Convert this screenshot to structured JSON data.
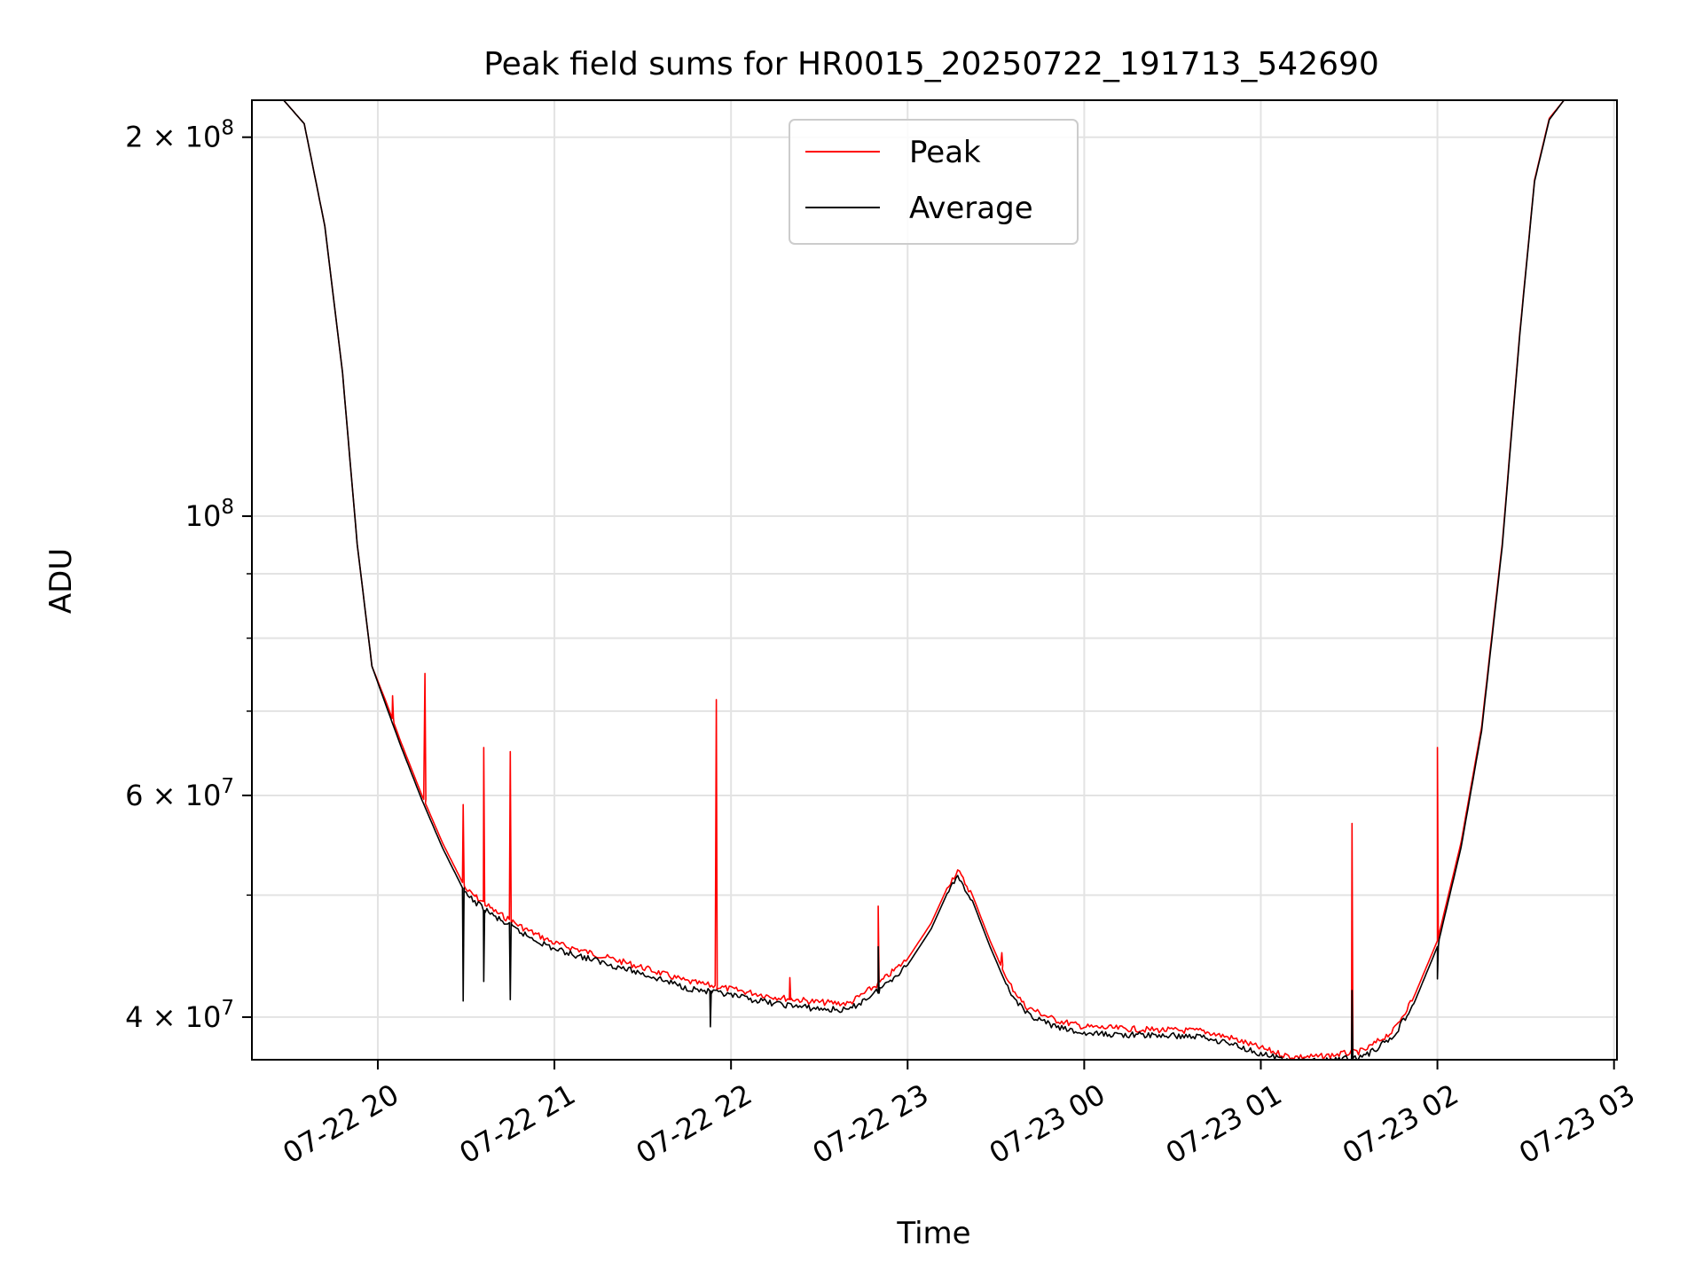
{
  "chart_data": {
    "type": "line",
    "title": "Peak field sums for HR0015_20250722_191713_542690",
    "xlabel": "Time",
    "ylabel": "ADU",
    "y_scale": "log",
    "grid": true,
    "legend_position": "upper center",
    "x_range": [
      "2025-07-22 19:17:13",
      "2025-07-23 03:01:00"
    ],
    "ylim": [
      37000000,
      214000000
    ],
    "x_ticks": [
      {
        "value": "2025-07-22 20:00",
        "label": "07-22 20"
      },
      {
        "value": "2025-07-22 21:00",
        "label": "07-22 21"
      },
      {
        "value": "2025-07-22 22:00",
        "label": "07-22 22"
      },
      {
        "value": "2025-07-22 23:00",
        "label": "07-22 23"
      },
      {
        "value": "2025-07-23 00:00",
        "label": "07-23 00"
      },
      {
        "value": "2025-07-23 01:00",
        "label": "07-23 01"
      },
      {
        "value": "2025-07-23 02:00",
        "label": "07-23 02"
      },
      {
        "value": "2025-07-23 03:00",
        "label": "07-23 03"
      }
    ],
    "y_ticks_major": [
      {
        "value": 40000000,
        "mantissa": "4",
        "exponent": "7"
      },
      {
        "value": 60000000,
        "mantissa": "6",
        "exponent": "7"
      },
      {
        "value": 100000000,
        "mantissa": "",
        "exponent": "8"
      },
      {
        "value": 200000000,
        "mantissa": "2",
        "exponent": "8"
      }
    ],
    "y_ticks_minor": [
      50000000,
      70000000,
      80000000,
      90000000
    ],
    "series": [
      {
        "name": "Peak",
        "color": "#ff0000",
        "points": [
          [
            "2025-07-22 19:17",
            214000000
          ],
          [
            "2025-07-22 19:28",
            214000000
          ],
          [
            "2025-07-22 19:35",
            205000000
          ],
          [
            "2025-07-22 19:42",
            170000000
          ],
          [
            "2025-07-22 19:48",
            130000000
          ],
          [
            "2025-07-22 19:53",
            95000000
          ],
          [
            "2025-07-22 19:58",
            76000000
          ],
          [
            "2025-07-22 20:03",
            71000000
          ],
          [
            "2025-07-22 20:08",
            66000000
          ],
          [
            "2025-07-22 20:15",
            60000000
          ],
          [
            "2025-07-22 20:22",
            55000000
          ],
          [
            "2025-07-22 20:30",
            50500000
          ],
          [
            "2025-07-22 20:40",
            48500000
          ],
          [
            "2025-07-22 20:50",
            47000000
          ],
          [
            "2025-07-22 21:00",
            45800000
          ],
          [
            "2025-07-22 21:15",
            44800000
          ],
          [
            "2025-07-22 21:30",
            43800000
          ],
          [
            "2025-07-22 21:45",
            42700000
          ],
          [
            "2025-07-22 22:00",
            42100000
          ],
          [
            "2025-07-22 22:15",
            41500000
          ],
          [
            "2025-07-22 22:30",
            41100000
          ],
          [
            "2025-07-22 22:40",
            41000000
          ],
          [
            "2025-07-22 22:50",
            42500000
          ],
          [
            "2025-07-22 23:00",
            44500000
          ],
          [
            "2025-07-22 23:08",
            47500000
          ],
          [
            "2025-07-22 23:14",
            51000000
          ],
          [
            "2025-07-22 23:17",
            52300000
          ],
          [
            "2025-07-22 23:22",
            50000000
          ],
          [
            "2025-07-22 23:28",
            46000000
          ],
          [
            "2025-07-22 23:34",
            42700000
          ],
          [
            "2025-07-22 23:40",
            40800000
          ],
          [
            "2025-07-22 23:50",
            39800000
          ],
          [
            "2025-07-23 00:00",
            39300000
          ],
          [
            "2025-07-23 00:20",
            39100000
          ],
          [
            "2025-07-23 00:40",
            39000000
          ],
          [
            "2025-07-23 00:50",
            38500000
          ],
          [
            "2025-07-23 01:00",
            37800000
          ],
          [
            "2025-07-23 01:10",
            37200000
          ],
          [
            "2025-07-23 01:20",
            37200000
          ],
          [
            "2025-07-23 01:35",
            37600000
          ],
          [
            "2025-07-23 01:45",
            39000000
          ],
          [
            "2025-07-23 01:52",
            41500000
          ],
          [
            "2025-07-23 02:00",
            46000000
          ],
          [
            "2025-07-23 02:08",
            55000000
          ],
          [
            "2025-07-23 02:15",
            68000000
          ],
          [
            "2025-07-23 02:22",
            95000000
          ],
          [
            "2025-07-23 02:28",
            140000000
          ],
          [
            "2025-07-23 02:33",
            185000000
          ],
          [
            "2025-07-23 02:38",
            207000000
          ],
          [
            "2025-07-23 02:43",
            214000000
          ],
          [
            "2025-07-23 03:01",
            214000000
          ]
        ],
        "spikes": [
          [
            "2025-07-22 20:05",
            72000000
          ],
          [
            "2025-07-22 20:16",
            75000000
          ],
          [
            "2025-07-22 20:29",
            59000000
          ],
          [
            "2025-07-22 20:33",
            50000000
          ],
          [
            "2025-07-22 20:36",
            65500000
          ],
          [
            "2025-07-22 20:45",
            65000000
          ],
          [
            "2025-07-22 21:55",
            71500000
          ],
          [
            "2025-07-22 22:20",
            43000000
          ],
          [
            "2025-07-22 22:50",
            49000000
          ],
          [
            "2025-07-22 23:32",
            45000000
          ],
          [
            "2025-07-23 01:31",
            57000000
          ],
          [
            "2025-07-23 02:00",
            65500000
          ]
        ]
      },
      {
        "name": "Average",
        "color": "#000000",
        "points": [
          [
            "2025-07-22 19:17",
            214000000
          ],
          [
            "2025-07-22 19:28",
            214000000
          ],
          [
            "2025-07-22 19:35",
            205000000
          ],
          [
            "2025-07-22 19:42",
            170000000
          ],
          [
            "2025-07-22 19:48",
            130000000
          ],
          [
            "2025-07-22 19:53",
            95000000
          ],
          [
            "2025-07-22 19:58",
            76000000
          ],
          [
            "2025-07-22 20:03",
            70500000
          ],
          [
            "2025-07-22 20:08",
            65500000
          ],
          [
            "2025-07-22 20:15",
            59500000
          ],
          [
            "2025-07-22 20:22",
            54500000
          ],
          [
            "2025-07-22 20:30",
            50000000
          ],
          [
            "2025-07-22 20:40",
            48000000
          ],
          [
            "2025-07-22 20:50",
            46500000
          ],
          [
            "2025-07-22 21:00",
            45300000
          ],
          [
            "2025-07-22 21:15",
            44300000
          ],
          [
            "2025-07-22 21:30",
            43300000
          ],
          [
            "2025-07-22 21:45",
            42200000
          ],
          [
            "2025-07-22 22:00",
            41600000
          ],
          [
            "2025-07-22 22:15",
            41000000
          ],
          [
            "2025-07-22 22:30",
            40600000
          ],
          [
            "2025-07-22 22:40",
            40500000
          ],
          [
            "2025-07-22 22:50",
            42000000
          ],
          [
            "2025-07-22 23:00",
            44000000
          ],
          [
            "2025-07-22 23:08",
            47000000
          ],
          [
            "2025-07-22 23:14",
            50500000
          ],
          [
            "2025-07-22 23:17",
            51800000
          ],
          [
            "2025-07-22 23:22",
            49500000
          ],
          [
            "2025-07-22 23:28",
            45500000
          ],
          [
            "2025-07-22 23:34",
            42200000
          ],
          [
            "2025-07-22 23:40",
            40300000
          ],
          [
            "2025-07-22 23:50",
            39300000
          ],
          [
            "2025-07-23 00:00",
            38800000
          ],
          [
            "2025-07-23 00:20",
            38700000
          ],
          [
            "2025-07-23 00:40",
            38600000
          ],
          [
            "2025-07-23 00:50",
            38100000
          ],
          [
            "2025-07-23 01:00",
            37400000
          ],
          [
            "2025-07-23 01:10",
            36900000
          ],
          [
            "2025-07-23 01:20",
            36900000
          ],
          [
            "2025-07-23 01:35",
            37200000
          ],
          [
            "2025-07-23 01:45",
            38600000
          ],
          [
            "2025-07-23 01:52",
            41000000
          ],
          [
            "2025-07-23 02:00",
            45500000
          ],
          [
            "2025-07-23 02:08",
            54500000
          ],
          [
            "2025-07-23 02:15",
            67500000
          ],
          [
            "2025-07-23 02:22",
            94500000
          ],
          [
            "2025-07-23 02:28",
            139500000
          ],
          [
            "2025-07-23 02:33",
            184500000
          ],
          [
            "2025-07-23 02:38",
            206500000
          ],
          [
            "2025-07-23 02:43",
            214000000
          ],
          [
            "2025-07-23 03:01",
            214000000
          ]
        ],
        "spikes": [
          [
            "2025-07-22 20:29",
            41200000
          ],
          [
            "2025-07-22 20:36",
            42700000
          ],
          [
            "2025-07-22 20:45",
            41300000
          ],
          [
            "2025-07-22 21:53",
            39300000
          ],
          [
            "2025-07-22 22:50",
            45500000
          ],
          [
            "2025-07-23 01:31",
            42000000
          ],
          [
            "2025-07-23 02:00",
            42900000
          ]
        ]
      }
    ]
  }
}
